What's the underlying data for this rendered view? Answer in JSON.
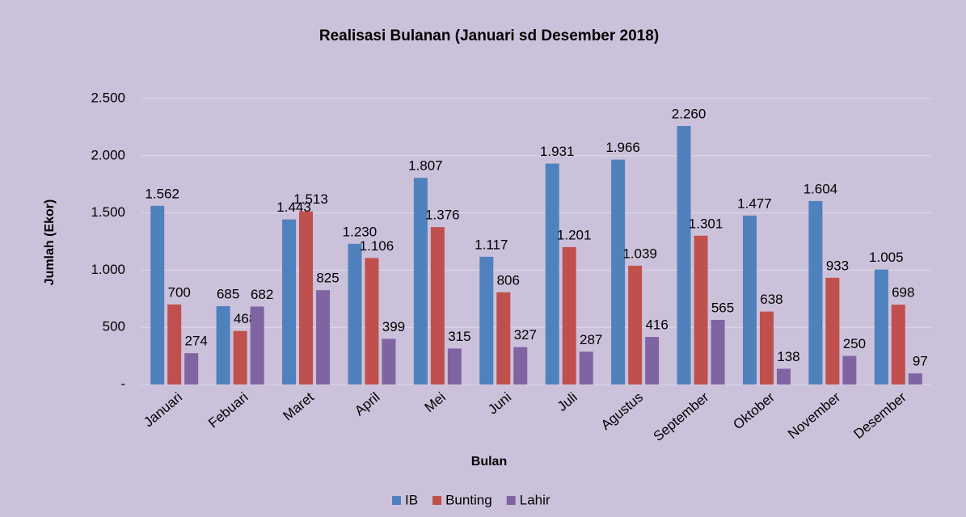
{
  "chart_data": {
    "type": "bar",
    "title": "Realisasi Bulanan (Januari sd Desember 2018)",
    "x_label": "Bulan",
    "y_label": "Jumlah (Ekor)",
    "categories": [
      "Januari",
      "Febuari",
      "Maret",
      "April",
      "Mei",
      "Juni",
      "Juli",
      "Agustus",
      "September",
      "Oktober",
      "November",
      "Desember"
    ],
    "series": [
      {
        "name": "IB",
        "color": "#4f81bd",
        "values": [
          1562,
          685,
          1443,
          1230,
          1807,
          1117,
          1931,
          1966,
          2260,
          1477,
          1604,
          1005
        ],
        "value_labels": [
          "1.562",
          "685",
          "1.443",
          "1.230",
          "1.807",
          "1.117",
          "1.931",
          "1.966",
          "2.260",
          "1.477",
          "1.604",
          "1.005"
        ]
      },
      {
        "name": "Bunting",
        "color": "#c0504d",
        "values": [
          700,
          468,
          1513,
          1106,
          1376,
          806,
          1201,
          1039,
          1301,
          638,
          933,
          698
        ],
        "value_labels": [
          "700",
          "468",
          "1.513",
          "1.106",
          "1.376",
          "806",
          "1.201",
          "1.039",
          "1.301",
          "638",
          "933",
          "698"
        ]
      },
      {
        "name": "Lahir",
        "color": "#8064a2",
        "values": [
          274,
          682,
          825,
          399,
          315,
          327,
          287,
          416,
          565,
          138,
          250,
          97
        ],
        "value_labels": [
          "274",
          "682",
          "825",
          "399",
          "315",
          "327",
          "287",
          "416",
          "565",
          "138",
          "250",
          "97"
        ]
      }
    ],
    "ylim": [
      0,
      2500
    ],
    "yticks": [
      {
        "value": 0,
        "label": "-"
      },
      500,
      {
        "value": 1000,
        "label": "1.000"
      },
      {
        "value": 1500,
        "label": "1.500"
      },
      {
        "value": 2000,
        "label": "2.000"
      },
      {
        "value": 2500,
        "label": "2.500"
      }
    ],
    "grid": true,
    "legend": "bottom"
  }
}
